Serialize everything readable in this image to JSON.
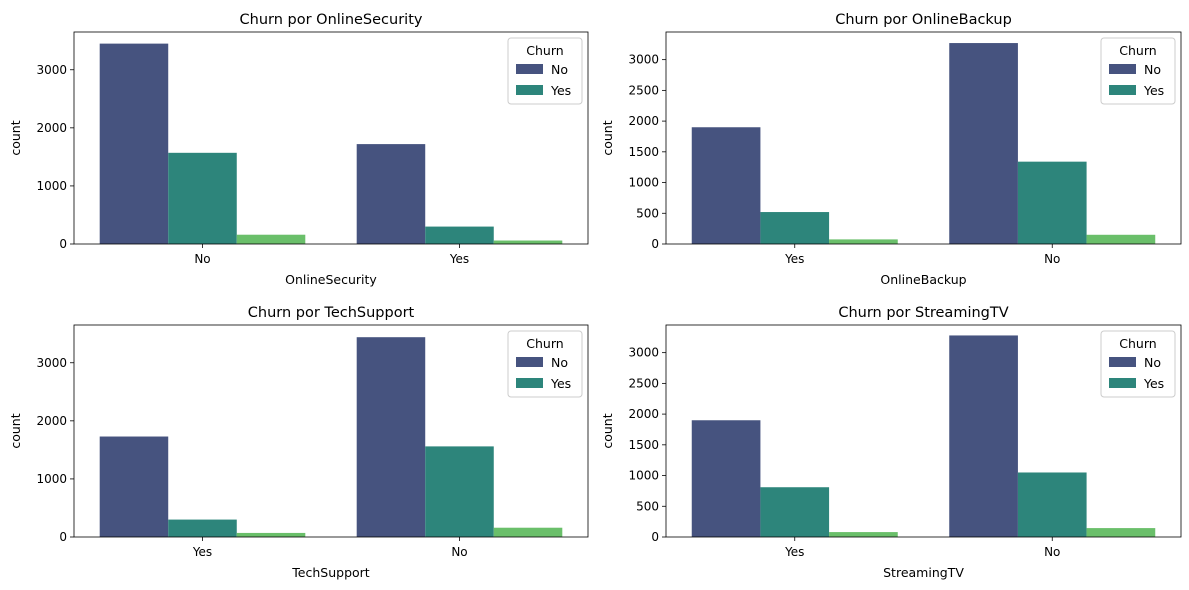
{
  "chart_data": [
    {
      "type": "bar",
      "title": "Churn por OnlineSecurity",
      "xlabel": "OnlineSecurity",
      "ylabel": "count",
      "categories": [
        "No",
        "Yes"
      ],
      "ylim": [
        0,
        3650
      ],
      "yticks": [
        0,
        1000,
        2000,
        3000
      ],
      "legend": {
        "title": "Churn",
        "placement": "top-right",
        "entries": [
          "No",
          "Yes"
        ]
      },
      "series": [
        {
          "name": "No",
          "color": "#46537f",
          "values": [
            3450,
            1720
          ]
        },
        {
          "name": "Yes",
          "color": "#2d857b",
          "values": [
            1570,
            300
          ]
        },
        {
          "color": "#6abf6a",
          "values": [
            160,
            60
          ]
        }
      ]
    },
    {
      "type": "bar",
      "title": "Churn por OnlineBackup",
      "xlabel": "OnlineBackup",
      "ylabel": "count",
      "categories": [
        "Yes",
        "No"
      ],
      "ylim": [
        0,
        3450
      ],
      "yticks": [
        0,
        500,
        1000,
        1500,
        2000,
        2500,
        3000
      ],
      "legend": {
        "title": "Churn",
        "placement": "top-right",
        "entries": [
          "No",
          "Yes"
        ]
      },
      "series": [
        {
          "name": "No",
          "color": "#46537f",
          "values": [
            1900,
            3270
          ]
        },
        {
          "name": "Yes",
          "color": "#2d857b",
          "values": [
            520,
            1340
          ]
        },
        {
          "color": "#6abf6a",
          "values": [
            75,
            150
          ]
        }
      ]
    },
    {
      "type": "bar",
      "title": "Churn por TechSupport",
      "xlabel": "TechSupport",
      "ylabel": "count",
      "categories": [
        "Yes",
        "No"
      ],
      "ylim": [
        0,
        3650
      ],
      "yticks": [
        0,
        1000,
        2000,
        3000
      ],
      "legend": {
        "title": "Churn",
        "placement": "top-right",
        "entries": [
          "No",
          "Yes"
        ]
      },
      "series": [
        {
          "name": "No",
          "color": "#46537f",
          "values": [
            1730,
            3440
          ]
        },
        {
          "name": "Yes",
          "color": "#2d857b",
          "values": [
            300,
            1560
          ]
        },
        {
          "color": "#6abf6a",
          "values": [
            70,
            160
          ]
        }
      ]
    },
    {
      "type": "bar",
      "title": "Churn por StreamingTV",
      "xlabel": "StreamingTV",
      "ylabel": "count",
      "categories": [
        "Yes",
        "No"
      ],
      "ylim": [
        0,
        3450
      ],
      "yticks": [
        0,
        500,
        1000,
        1500,
        2000,
        2500,
        3000
      ],
      "legend": {
        "title": "Churn",
        "placement": "top-right",
        "entries": [
          "No",
          "Yes"
        ]
      },
      "series": [
        {
          "name": "No",
          "color": "#46537f",
          "values": [
            1900,
            3280
          ]
        },
        {
          "name": "Yes",
          "color": "#2d857b",
          "values": [
            810,
            1050
          ]
        },
        {
          "color": "#6abf6a",
          "values": [
            80,
            145
          ]
        }
      ]
    }
  ]
}
